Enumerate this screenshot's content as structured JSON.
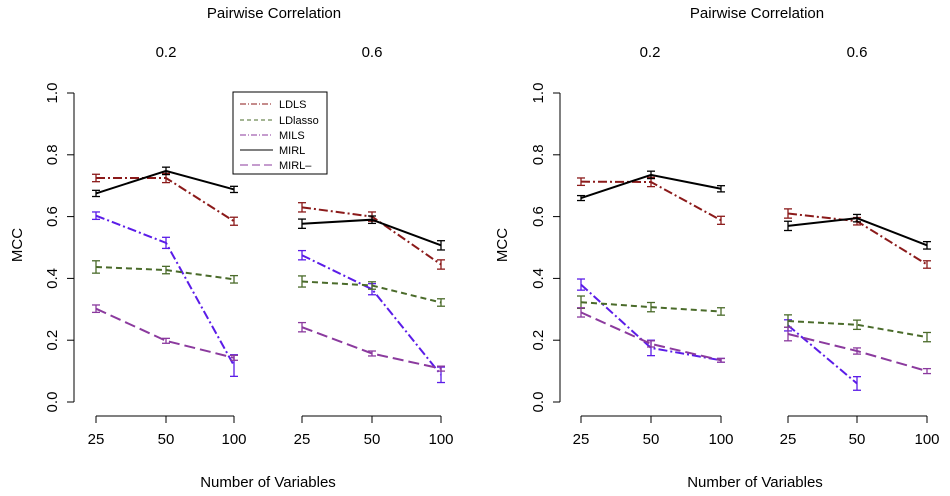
{
  "chart_data": [
    {
      "type": "line",
      "panel": "left",
      "title": "Pairwise Correlation",
      "group_labels": [
        "0.2",
        "0.6"
      ],
      "xlabel": "Number of Variables",
      "ylabel": "MCC",
      "ylim": [
        0,
        1
      ],
      "yticks": [
        "0.0",
        "0.2",
        "0.4",
        "0.6",
        "0.8",
        "1.0"
      ],
      "xticks": [
        "25",
        "50",
        "100",
        "25",
        "50",
        "100"
      ],
      "legend": {
        "placement": "top-center",
        "entries": [
          "LDLS",
          "LDlasso",
          "MILS",
          "MIRL",
          "MIRL–"
        ]
      },
      "groups": [
        {
          "label": "0.2",
          "series": [
            {
              "name": "LDLS",
              "color": "#8b1a1a",
              "dash": "dashdot",
              "values": [
                0.725,
                0.725,
                0.585
              ],
              "err": [
                0.012,
                0.015,
                0.013
              ]
            },
            {
              "name": "MIRL",
              "color": "#000000",
              "dash": "solid",
              "values": [
                0.675,
                0.748,
                0.688
              ],
              "err": [
                0.01,
                0.012,
                0.01
              ]
            },
            {
              "name": "MILS",
              "color": "#5b1ce8",
              "dash": "dashdot",
              "values": [
                0.603,
                0.515,
                0.118
              ],
              "err": [
                0.012,
                0.018,
                0.035
              ]
            },
            {
              "name": "LDlasso",
              "color": "#4a6b2a",
              "dash": "dashed",
              "values": [
                0.437,
                0.427,
                0.397
              ],
              "err": [
                0.02,
                0.012,
                0.012
              ]
            },
            {
              "name": "MIRL–",
              "color": "#8b3a9e",
              "dash": "longdash",
              "values": [
                0.302,
                0.198,
                0.143
              ],
              "err": [
                0.012,
                0.008,
                0.008
              ]
            }
          ]
        },
        {
          "label": "0.6",
          "series": [
            {
              "name": "LDLS",
              "color": "#8b1a1a",
              "dash": "dashdot",
              "values": [
                0.63,
                0.6,
                0.445
              ],
              "err": [
                0.015,
                0.015,
                0.015
              ]
            },
            {
              "name": "MIRL",
              "color": "#000000",
              "dash": "solid",
              "values": [
                0.577,
                0.59,
                0.507
              ],
              "err": [
                0.015,
                0.012,
                0.015
              ]
            },
            {
              "name": "MILS",
              "color": "#5b1ce8",
              "dash": "dashdot",
              "values": [
                0.475,
                0.365,
                0.088
              ],
              "err": [
                0.015,
                0.018,
                0.025
              ]
            },
            {
              "name": "LDlasso",
              "color": "#4a6b2a",
              "dash": "dashed",
              "values": [
                0.39,
                0.377,
                0.322
              ],
              "err": [
                0.018,
                0.012,
                0.012
              ]
            },
            {
              "name": "MIRL–",
              "color": "#8b3a9e",
              "dash": "longdash",
              "values": [
                0.242,
                0.157,
                0.108
              ],
              "err": [
                0.015,
                0.008,
                0.008
              ]
            }
          ]
        }
      ]
    },
    {
      "type": "line",
      "panel": "right",
      "title": "Pairwise Correlation",
      "group_labels": [
        "0.2",
        "0.6"
      ],
      "xlabel": "Number of Variables",
      "ylabel": "MCC",
      "ylim": [
        0,
        1
      ],
      "yticks": [
        "0.0",
        "0.2",
        "0.4",
        "0.6",
        "0.8",
        "1.0"
      ],
      "xticks": [
        "25",
        "50",
        "100",
        "25",
        "50",
        "100"
      ],
      "groups": [
        {
          "label": "0.2",
          "series": [
            {
              "name": "LDLS",
              "color": "#8b1a1a",
              "dash": "dashdot",
              "values": [
                0.713,
                0.712,
                0.588
              ],
              "err": [
                0.012,
                0.015,
                0.013
              ]
            },
            {
              "name": "MIRL",
              "color": "#000000",
              "dash": "solid",
              "values": [
                0.66,
                0.735,
                0.69
              ],
              "err": [
                0.008,
                0.012,
                0.01
              ]
            },
            {
              "name": "MILS",
              "color": "#5b1ce8",
              "dash": "dashdot",
              "values": [
                0.38,
                0.175,
                0.135
              ],
              "err": [
                0.018,
                0.025,
                0.006
              ]
            },
            {
              "name": "LDlasso",
              "color": "#4a6b2a",
              "dash": "dashed",
              "values": [
                0.323,
                0.307,
                0.293
              ],
              "err": [
                0.02,
                0.015,
                0.012
              ]
            },
            {
              "name": "MIRL–",
              "color": "#8b3a9e",
              "dash": "longdash",
              "values": [
                0.29,
                0.188,
                0.135
              ],
              "err": [
                0.015,
                0.01,
                0.006
              ]
            }
          ]
        },
        {
          "label": "0.6",
          "series": [
            {
              "name": "LDLS",
              "color": "#8b1a1a",
              "dash": "dashdot",
              "values": [
                0.61,
                0.585,
                0.445
              ],
              "err": [
                0.015,
                0.012,
                0.012
              ]
            },
            {
              "name": "MIRL",
              "color": "#000000",
              "dash": "solid",
              "values": [
                0.57,
                0.595,
                0.507
              ],
              "err": [
                0.015,
                0.012,
                0.012
              ]
            },
            {
              "name": "MILS",
              "color": "#5b1ce8",
              "dash": "dashdot",
              "values": [
                0.248,
                0.06,
                null
              ],
              "err": [
                0.018,
                0.022,
                null
              ]
            },
            {
              "name": "LDlasso",
              "color": "#4a6b2a",
              "dash": "dashed",
              "values": [
                0.262,
                0.25,
                0.21
              ],
              "err": [
                0.02,
                0.015,
                0.015
              ]
            },
            {
              "name": "MIRL–",
              "color": "#8b3a9e",
              "dash": "longdash",
              "values": [
                0.22,
                0.165,
                0.1
              ],
              "err": [
                0.022,
                0.01,
                0.008
              ]
            }
          ]
        }
      ]
    }
  ]
}
